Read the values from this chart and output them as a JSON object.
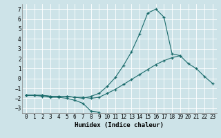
{
  "xlabel": "Humidex (Indice chaleur)",
  "xlim": [
    -0.5,
    23.5
  ],
  "ylim": [
    -3.5,
    7.5
  ],
  "xticks": [
    0,
    1,
    2,
    3,
    4,
    5,
    6,
    7,
    8,
    9,
    10,
    11,
    12,
    13,
    14,
    15,
    16,
    17,
    18,
    19,
    20,
    21,
    22,
    23
  ],
  "yticks": [
    -3,
    -2,
    -1,
    0,
    1,
    2,
    3,
    4,
    5,
    6,
    7
  ],
  "background_color": "#cde3e8",
  "grid_color": "#ffffff",
  "line_color": "#1a6b6b",
  "series1_x": [
    0,
    1,
    2,
    3,
    4,
    5,
    6,
    7,
    8,
    9,
    10,
    11,
    12,
    13,
    14,
    15,
    16,
    17,
    18,
    19,
    20,
    21,
    22,
    23
  ],
  "series1_y": [
    -1.7,
    -1.7,
    -1.7,
    -1.8,
    -1.8,
    -1.8,
    -1.9,
    -1.9,
    -2.0,
    -1.9,
    -1.5,
    -1.1,
    -0.6,
    -0.1,
    0.4,
    0.9,
    1.4,
    1.8,
    2.1,
    2.3,
    1.5,
    1.0,
    0.2,
    -0.5
  ],
  "series2_x": [
    0,
    1,
    2,
    3,
    4,
    5,
    6,
    7,
    8,
    9
  ],
  "series2_y": [
    -1.7,
    -1.7,
    -1.8,
    -1.9,
    -1.9,
    -2.0,
    -2.2,
    -2.5,
    -3.3,
    -3.4
  ],
  "series3_x": [
    0,
    1,
    2,
    3,
    4,
    5,
    6,
    7,
    8,
    9,
    10,
    11,
    12,
    13,
    14,
    15,
    16,
    17,
    18,
    19
  ],
  "series3_y": [
    -1.7,
    -1.7,
    -1.7,
    -1.8,
    -1.8,
    -1.8,
    -1.9,
    -2.0,
    -1.8,
    -1.5,
    -0.8,
    0.1,
    1.3,
    2.7,
    4.5,
    6.6,
    7.0,
    6.2,
    2.5,
    2.3
  ]
}
